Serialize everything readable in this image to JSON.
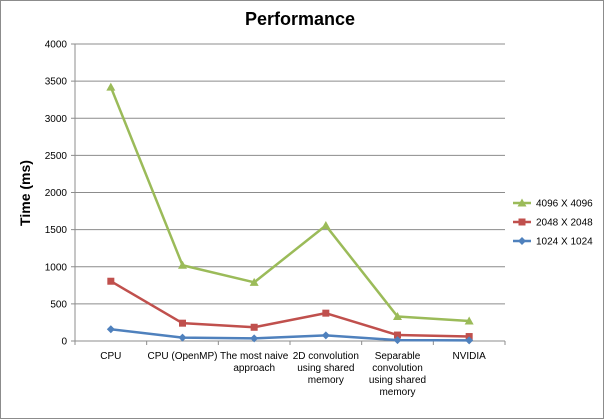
{
  "chart_data": {
    "type": "line",
    "title": "Performance",
    "xlabel": "",
    "ylabel": "Time (ms)",
    "ylim": [
      0,
      4000
    ],
    "yticks": [
      "0",
      "500",
      "1000",
      "1500",
      "2000",
      "2500",
      "3000",
      "3500",
      "4000"
    ],
    "categories": [
      [
        "CPU"
      ],
      [
        "CPU (OpenMP)"
      ],
      [
        "The most  naive",
        "approach"
      ],
      [
        "2D convolution",
        "using shared",
        "memory"
      ],
      [
        "Separable",
        "convolution",
        "using shared",
        "memory"
      ],
      [
        "NVIDIA"
      ]
    ],
    "grid": "horizontal",
    "legend_position": "right",
    "series": [
      {
        "name": "4096 X 4096",
        "color": "#9BBB59",
        "marker": "triangle",
        "values": [
          3420,
          1020,
          790,
          1555,
          330,
          270
        ]
      },
      {
        "name": "2048 X 2048",
        "color": "#C0504D",
        "marker": "square",
        "values": [
          805,
          240,
          185,
          375,
          80,
          60
        ]
      },
      {
        "name": "1024 X 1024",
        "color": "#4F81BD",
        "marker": "diamond",
        "values": [
          158,
          45,
          35,
          75,
          12,
          8
        ]
      }
    ]
  }
}
